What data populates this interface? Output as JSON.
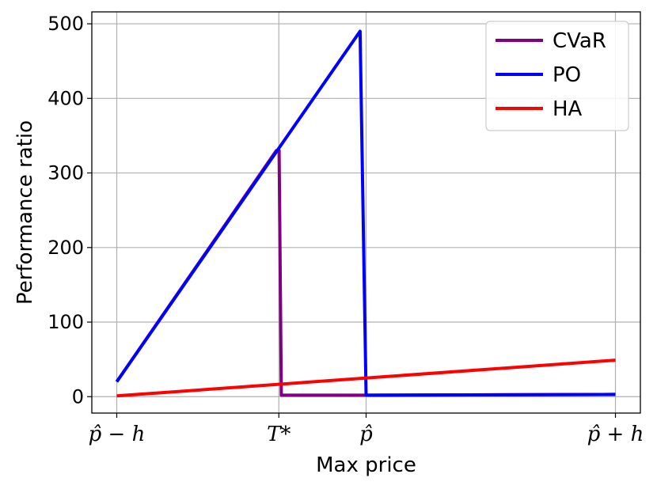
{
  "chart_data": {
    "type": "line",
    "xlabel": "Max price",
    "ylabel": "Performance ratio",
    "xticks": [
      {
        "x": 0,
        "label": "p̂ − h"
      },
      {
        "x": 0.325,
        "label": "T*"
      },
      {
        "x": 0.5,
        "label": "p̂"
      },
      {
        "x": 1,
        "label": "p̂ + h"
      }
    ],
    "yticks": [
      0,
      100,
      200,
      300,
      400,
      500
    ],
    "xlim": [
      -0.05,
      1.05
    ],
    "ylim": [
      -22,
      516
    ],
    "grid": true,
    "legend_position": "top-right",
    "series": [
      {
        "name": "CVaR",
        "color": "#800080",
        "points": [
          [
            0,
            20
          ],
          [
            0.32,
            330
          ],
          [
            0.3255,
            330
          ],
          [
            0.33,
            2
          ],
          [
            0.5,
            2
          ],
          [
            1,
            3
          ]
        ]
      },
      {
        "name": "PO",
        "color": "#0000ff",
        "points": [
          [
            0,
            20
          ],
          [
            0.488,
            490
          ],
          [
            0.5,
            2
          ],
          [
            1,
            3
          ]
        ]
      },
      {
        "name": "HA",
        "color": "#ff0000",
        "points": [
          [
            0,
            1
          ],
          [
            1,
            49
          ]
        ]
      }
    ]
  }
}
